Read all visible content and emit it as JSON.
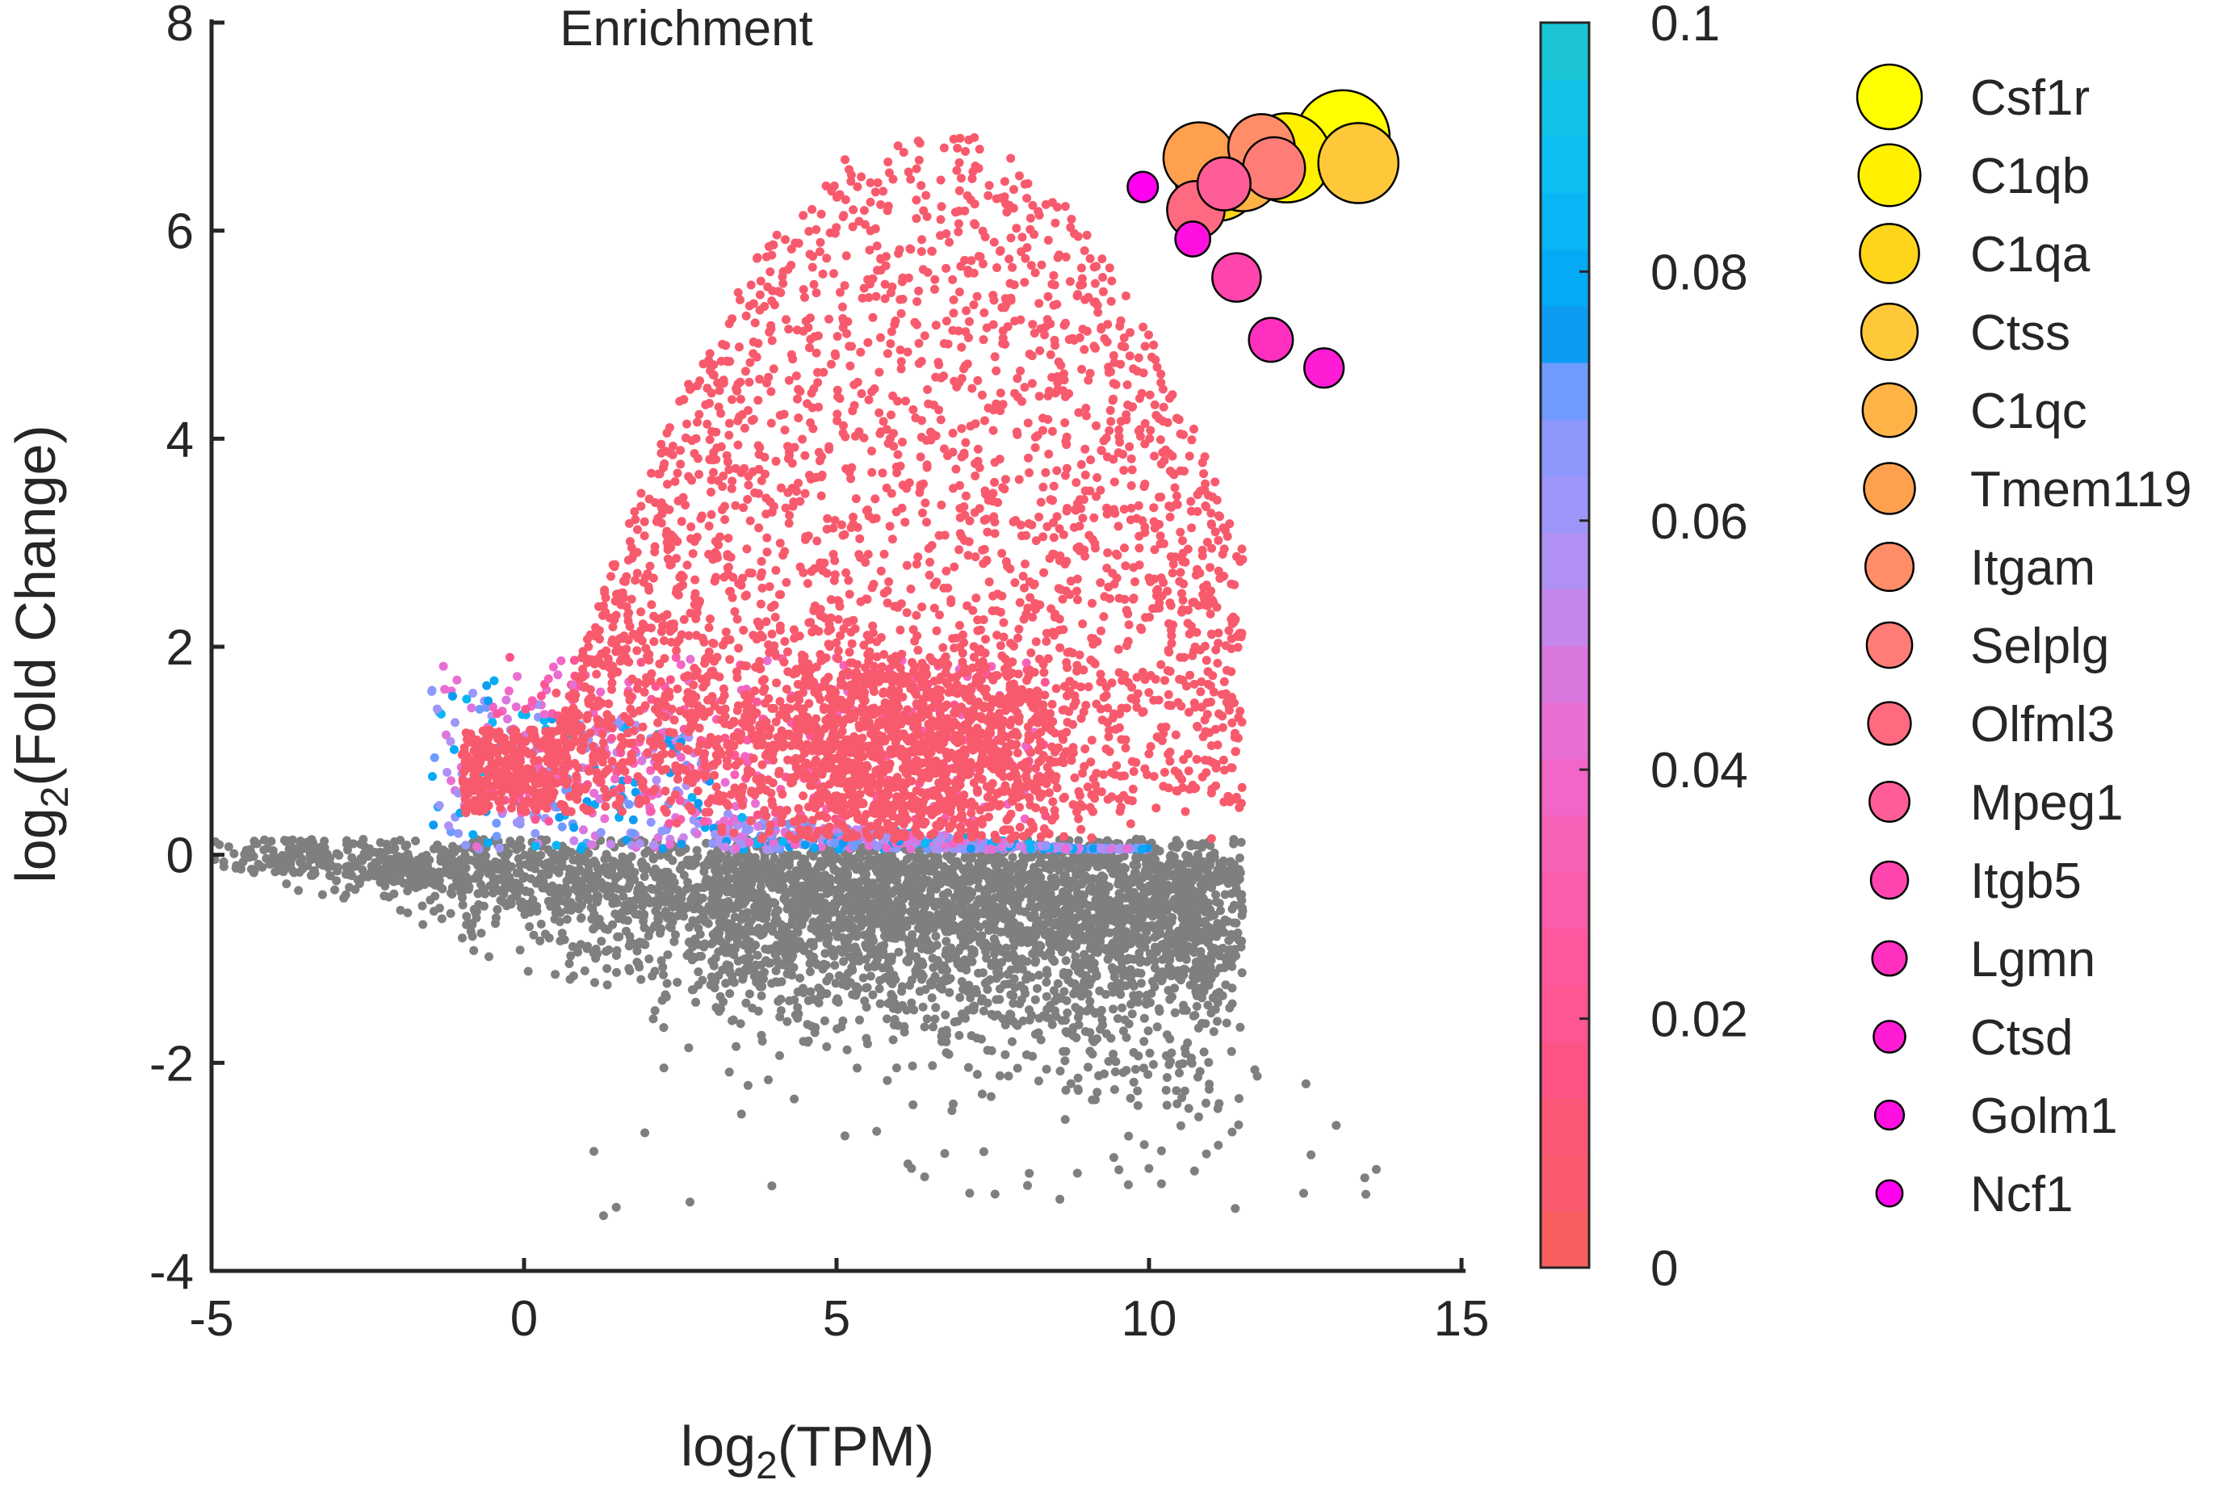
{
  "chart_data": {
    "type": "scatter",
    "title": "Enrichment",
    "xlabel": {
      "main": "log",
      "sub": "2",
      "rest": "(TPM)"
    },
    "ylabel": {
      "main": "log",
      "sub": "2",
      "rest": "(Fold Change)"
    },
    "xlim": [
      -5,
      15
    ],
    "ylim": [
      -4,
      8
    ],
    "x_ticks": [
      "-5",
      "0",
      "5",
      "10",
      "15"
    ],
    "y_ticks": [
      "8",
      "6",
      "4",
      "2",
      "0",
      "-2",
      "-4"
    ],
    "grid": false,
    "colorbar": {
      "range": [
        0,
        0.1
      ],
      "ticks": [
        "0.1",
        "0.08",
        "0.06",
        "0.04",
        "0.02",
        "0"
      ],
      "colors_bottom_to_top": [
        "#f75f5f",
        "#f95b6c",
        "#fb5878",
        "#fc5585",
        "#fd5692",
        "#fd589e",
        "#fb5cab",
        "#f861b8",
        "#f166c6",
        "#e96ed3",
        "#d977de",
        "#c685ea",
        "#b091f3",
        "#9d96f9",
        "#8e97fc",
        "#6f9bfe",
        "#0e9cf3",
        "#04aaf5",
        "#08b6f6",
        "#0bbff3",
        "#12c2e6",
        "#1ac4d4"
      ]
    },
    "background_color": "#7f7f7f",
    "highlight_color": "#f85a6d",
    "legend_placement": "right",
    "genes": [
      {
        "name": "Csf1r",
        "x": 13.1,
        "y": 6.9,
        "p": 0,
        "color": "#ffff00"
      },
      {
        "name": "C1qb",
        "x": 12.2,
        "y": 6.7,
        "p": 1,
        "color": "#fff000"
      },
      {
        "name": "C1qa",
        "x": 11.1,
        "y": 6.5,
        "p": 2,
        "color": "#ffd51c"
      },
      {
        "name": "Ctss",
        "x": 13.35,
        "y": 6.65,
        "p": 3,
        "color": "#ffc83a"
      },
      {
        "name": "C1qc",
        "x": 11.5,
        "y": 6.55,
        "p": 4,
        "color": "#ffb347"
      },
      {
        "name": "Tmem119",
        "x": 10.8,
        "y": 6.7,
        "p": 5,
        "color": "#ffa04f"
      },
      {
        "name": "Itgam",
        "x": 11.8,
        "y": 6.8,
        "p": 6,
        "color": "#ff8d68"
      },
      {
        "name": "Selplg",
        "x": 12.0,
        "y": 6.6,
        "p": 7,
        "color": "#ff7d76"
      },
      {
        "name": "Olfml3",
        "x": 10.75,
        "y": 6.2,
        "p": 8,
        "color": "#ff6a80"
      },
      {
        "name": "Mpeg1",
        "x": 11.2,
        "y": 6.45,
        "p": 9,
        "color": "#ff5d98"
      },
      {
        "name": "Itgb5",
        "x": 11.4,
        "y": 5.55,
        "p": 10,
        "color": "#ff45ad"
      },
      {
        "name": "Lgmn",
        "x": 11.95,
        "y": 4.95,
        "p": 11,
        "color": "#ff30c0"
      },
      {
        "name": "Ctsd",
        "x": 12.8,
        "y": 4.68,
        "p": 12,
        "color": "#ff1cd5"
      },
      {
        "name": "Golm1",
        "x": 10.7,
        "y": 5.92,
        "p": 13,
        "color": "#ff10e0"
      },
      {
        "name": "Ncf1",
        "x": 9.9,
        "y": 6.42,
        "p": 14,
        "color": "#ff00f0"
      }
    ]
  }
}
